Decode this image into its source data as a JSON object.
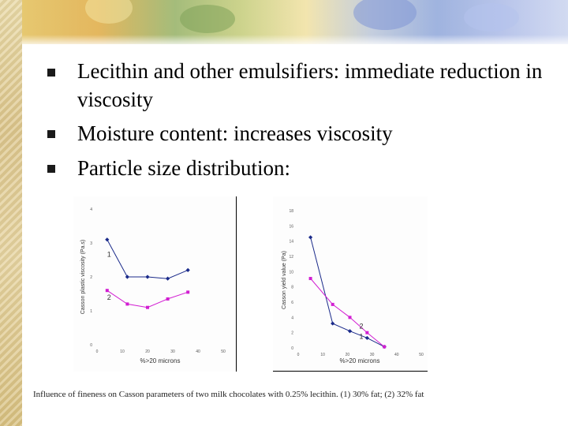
{
  "slide": {
    "bullets": [
      {
        "text": "Lecithin and other emulsifiers: immediate reduction in viscosity"
      },
      {
        "text": "Moisture content: increases viscosity"
      },
      {
        "text": "Particle size distribution:"
      }
    ],
    "caption": "Influence of fineness on Casson parameters of two milk chocolates with 0.25% lecithin. (1) 30% fat; (2) 32% fat",
    "colors": {
      "series_1": "#1a2a8a",
      "series_2": "#d21ed2"
    }
  },
  "chart_data": [
    {
      "type": "line",
      "title": "",
      "xlabel": "%>20 microns",
      "ylabel": "Casson plastic viscosity (Pa.s)",
      "x_ticks": [
        "0",
        "10",
        "20",
        "30",
        "40",
        "50"
      ],
      "y_ticks": [
        "0",
        "1",
        "2",
        "3",
        "4"
      ],
      "xlim": [
        0,
        50
      ],
      "ylim": [
        0,
        4
      ],
      "series": [
        {
          "name": "1",
          "x": [
            4,
            12,
            20,
            28,
            36
          ],
          "y": [
            3.1,
            2.0,
            2.0,
            1.95,
            2.2
          ]
        },
        {
          "name": "2",
          "x": [
            4,
            12,
            20,
            28,
            36
          ],
          "y": [
            1.6,
            1.2,
            1.1,
            1.35,
            1.55
          ]
        }
      ]
    },
    {
      "type": "line",
      "title": "",
      "xlabel": "%>20 microns",
      "ylabel": "Casson yield value (Pa)",
      "x_ticks": [
        "0",
        "10",
        "20",
        "30",
        "40",
        "50"
      ],
      "y_ticks": [
        "0",
        "2",
        "4",
        "6",
        "8",
        "10",
        "12",
        "14",
        "16",
        "18"
      ],
      "xlim": [
        0,
        50
      ],
      "ylim": [
        0,
        18
      ],
      "series": [
        {
          "name": "1",
          "x": [
            5,
            14,
            21,
            28,
            35
          ],
          "y": [
            14.5,
            3.2,
            2.2,
            1.3,
            0.15
          ]
        },
        {
          "name": "2",
          "x": [
            5,
            14,
            21,
            28,
            35
          ],
          "y": [
            9.1,
            5.7,
            4.0,
            2.0,
            0.15
          ]
        }
      ]
    }
  ]
}
